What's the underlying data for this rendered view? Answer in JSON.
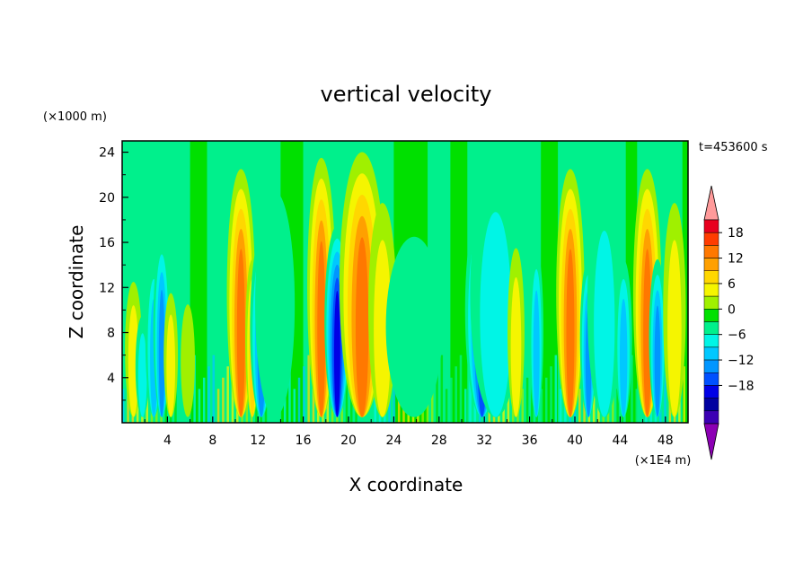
{
  "chart_data": {
    "type": "heatmap",
    "title": "vertical velocity",
    "time_label": "t=453600 s",
    "xlabel": "X coordinate",
    "ylabel": "Z coordinate",
    "x_unit": "(×1E4 m)",
    "y_unit": "(×1000 m)",
    "xlim": [
      0,
      50
    ],
    "ylim": [
      0,
      25
    ],
    "x_ticks": [
      "4",
      "8",
      "12",
      "16",
      "20",
      "24",
      "28",
      "32",
      "36",
      "40",
      "44",
      "48"
    ],
    "y_ticks": [
      "4",
      "8",
      "12",
      "16",
      "20",
      "24"
    ],
    "colorbar": {
      "ticks": [
        "18",
        "12",
        "6",
        "0",
        "−6",
        "−12",
        "−18"
      ],
      "levels": [
        21,
        18,
        15,
        12,
        9,
        6,
        3,
        0,
        -3,
        -6,
        -9,
        -12,
        -15,
        -18,
        -21
      ],
      "colors": [
        "#ff9a9a",
        "#e8001e",
        "#ff3c00",
        "#ff7800",
        "#ffa000",
        "#ffd700",
        "#f5f500",
        "#a0f000",
        "#00e000",
        "#00f08c",
        "#00f5e6",
        "#00c8ff",
        "#0096ff",
        "#0050ff",
        "#0000e6",
        "#0000a0",
        "#3c00b4",
        "#8c00b4"
      ]
    },
    "features": [
      {
        "x": 1.0,
        "z_top": 12,
        "w": 0.6,
        "value": 6
      },
      {
        "x": 1.8,
        "z_top": 9,
        "w": 0.5,
        "value": -6
      },
      {
        "x": 2.8,
        "z_top": 14,
        "w": 0.6,
        "value": -9
      },
      {
        "x": 3.5,
        "z_top": 16,
        "w": 0.6,
        "value": -12
      },
      {
        "x": 4.3,
        "z_top": 11,
        "w": 0.5,
        "value": 6
      },
      {
        "x": 5.8,
        "z_top": 10,
        "w": 0.5,
        "value": 3
      },
      {
        "x": 10.5,
        "z_top": 22,
        "w": 1.0,
        "value": 15
      },
      {
        "x": 11.5,
        "z_top": 14,
        "w": 0.5,
        "value": 9
      },
      {
        "x": 12.3,
        "z_top": 16,
        "w": 0.8,
        "value": -12
      },
      {
        "x": 13.5,
        "z_top": 20,
        "w": 1.4,
        "value": -3
      },
      {
        "x": 17.6,
        "z_top": 23,
        "w": 1.0,
        "value": 15
      },
      {
        "x": 19.0,
        "z_top": 17,
        "w": 0.9,
        "value": -18
      },
      {
        "x": 21.2,
        "z_top": 23.5,
        "w": 1.6,
        "value": 15
      },
      {
        "x": 23.0,
        "z_top": 19,
        "w": 1.0,
        "value": 6
      },
      {
        "x": 25.8,
        "z_top": 16,
        "w": 2.0,
        "value": -3
      },
      {
        "x": 31.8,
        "z_top": 19,
        "w": 1.2,
        "value": -15
      },
      {
        "x": 33.0,
        "z_top": 22,
        "w": 1.8,
        "value": -6
      },
      {
        "x": 34.8,
        "z_top": 15,
        "w": 0.6,
        "value": 6
      },
      {
        "x": 36.6,
        "z_top": 15,
        "w": 0.5,
        "value": -9
      },
      {
        "x": 39.6,
        "z_top": 22,
        "w": 1.0,
        "value": 15
      },
      {
        "x": 41.2,
        "z_top": 14,
        "w": 0.6,
        "value": -12
      },
      {
        "x": 42.6,
        "z_top": 20,
        "w": 1.2,
        "value": -6
      },
      {
        "x": 44.3,
        "z_top": 14,
        "w": 0.6,
        "value": -9
      },
      {
        "x": 46.4,
        "z_top": 22,
        "w": 1.0,
        "value": 15
      },
      {
        "x": 47.3,
        "z_top": 14,
        "w": 0.6,
        "value": -12
      },
      {
        "x": 48.8,
        "z_top": 19,
        "w": 0.8,
        "value": 6
      }
    ]
  }
}
